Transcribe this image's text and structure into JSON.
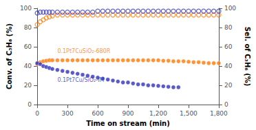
{
  "chart_data": {
    "type": "scatter",
    "xlabel": "Time on stream (min)",
    "ylabel": "Conv. of C₃H₈ (%)",
    "y2label": "Sel. of C₃H₆ (%)",
    "xlim": [
      0,
      1800
    ],
    "xticks": [
      0,
      300,
      600,
      900,
      1200,
      1500,
      1800
    ],
    "ylim": [
      0,
      100
    ],
    "yticks": [
      0,
      20,
      40,
      60,
      80,
      100
    ],
    "y2lim": [
      0,
      100
    ],
    "y2ticks": [
      0,
      20,
      40,
      60,
      80,
      100
    ],
    "grid": false,
    "series": [
      {
        "name": "0.1Pt7CuSiO₂-680R",
        "color": "#FF7700",
        "marker": "circle",
        "axis": "y",
        "x": [
          0,
          30,
          60,
          90,
          120,
          150,
          200,
          250,
          300,
          350,
          400,
          450,
          500,
          550,
          600,
          650,
          700,
          750,
          800,
          850,
          900,
          950,
          1000,
          1050,
          1100,
          1150,
          1200,
          1250,
          1300,
          1350,
          1400,
          1450,
          1500,
          1550,
          1600,
          1650,
          1700,
          1750,
          1800
        ],
        "values": [
          42,
          44,
          45,
          45.5,
          46,
          46,
          46,
          46,
          46,
          46,
          46,
          46,
          46,
          46,
          46,
          46,
          46,
          46,
          46,
          46,
          46,
          46,
          46,
          46,
          46,
          46,
          46,
          45.5,
          45.5,
          45,
          45,
          45,
          44.5,
          44,
          44,
          43.5,
          43,
          43,
          43
        ]
      },
      {
        "name": "0.1Pt7Cu/SiO₂-IM",
        "color": "#3030BB",
        "marker": "circle",
        "axis": "y",
        "x": [
          0,
          30,
          60,
          90,
          120,
          150,
          200,
          250,
          300,
          350,
          400,
          450,
          500,
          550,
          600,
          650,
          700,
          750,
          800,
          850,
          900,
          950,
          1000,
          1050,
          1100,
          1150,
          1200,
          1250,
          1300,
          1350,
          1400
        ],
        "values": [
          43,
          42,
          40,
          39,
          38,
          37,
          36,
          35,
          34,
          33,
          32,
          31,
          30,
          29,
          28,
          27,
          26,
          25,
          24,
          23,
          23,
          22,
          21,
          21,
          20,
          20,
          19.5,
          19,
          18.5,
          18,
          18
        ]
      },
      {
        "color": "#FF7700",
        "marker": "open_circle",
        "axis": "y2",
        "x": [
          0,
          30,
          60,
          90,
          120,
          150,
          200,
          250,
          300,
          350,
          400,
          450,
          500,
          550,
          600,
          650,
          700,
          750,
          800,
          850,
          900,
          950,
          1000,
          1050,
          1100,
          1150,
          1200,
          1250,
          1300,
          1350,
          1400,
          1450,
          1500,
          1550,
          1600,
          1650,
          1700,
          1750,
          1800
        ],
        "values": [
          83,
          86,
          88,
          90,
          91,
          92,
          93,
          93,
          93,
          93,
          93,
          93,
          93,
          93,
          93,
          93,
          93,
          93,
          93,
          93,
          93,
          93,
          93,
          93,
          93,
          93,
          93,
          93,
          93,
          93,
          93,
          93,
          93,
          93,
          93,
          93,
          93,
          93,
          93
        ]
      },
      {
        "color": "#3030BB",
        "marker": "open_circle",
        "axis": "y2",
        "x": [
          0,
          30,
          60,
          90,
          120,
          150,
          200,
          250,
          300,
          350,
          400,
          450,
          500,
          550,
          600,
          650,
          700,
          750,
          800,
          850,
          900,
          950,
          1000,
          1050,
          1100,
          1150,
          1200,
          1250,
          1300,
          1350,
          1400,
          1450,
          1500,
          1550,
          1600,
          1650,
          1700,
          1750,
          1800
        ],
        "values": [
          95,
          96,
          96,
          96,
          96,
          96,
          96,
          96,
          96,
          96,
          96,
          96,
          96,
          96,
          97,
          97,
          97,
          97,
          97,
          97,
          97,
          97,
          97,
          97,
          97,
          97,
          97,
          97,
          97,
          97,
          97,
          97,
          97,
          97,
          97,
          97,
          97,
          97,
          97
        ]
      }
    ]
  }
}
